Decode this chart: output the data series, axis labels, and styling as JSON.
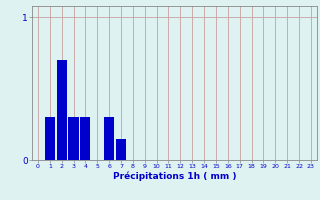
{
  "values": [
    0,
    0.3,
    0.7,
    0.3,
    0.3,
    0,
    0.3,
    0.15,
    0,
    0,
    0,
    0,
    0,
    0,
    0,
    0,
    0,
    0,
    0,
    0,
    0,
    0,
    0,
    0
  ],
  "xlabel": "Précipitations 1h ( mm )",
  "ylim": [
    0,
    1.08
  ],
  "xlim": [
    -0.5,
    23.5
  ],
  "yticks": [
    0,
    1
  ],
  "xticks": [
    0,
    1,
    2,
    3,
    4,
    5,
    6,
    7,
    8,
    9,
    10,
    11,
    12,
    13,
    14,
    15,
    16,
    17,
    18,
    19,
    20,
    21,
    22,
    23
  ],
  "bar_color": "#0000cc",
  "background_color": "#dff2f2",
  "grid_color": "#c8a0a0",
  "tick_color": "#0000cc",
  "label_color": "#0000cc",
  "bar_width": 0.85
}
